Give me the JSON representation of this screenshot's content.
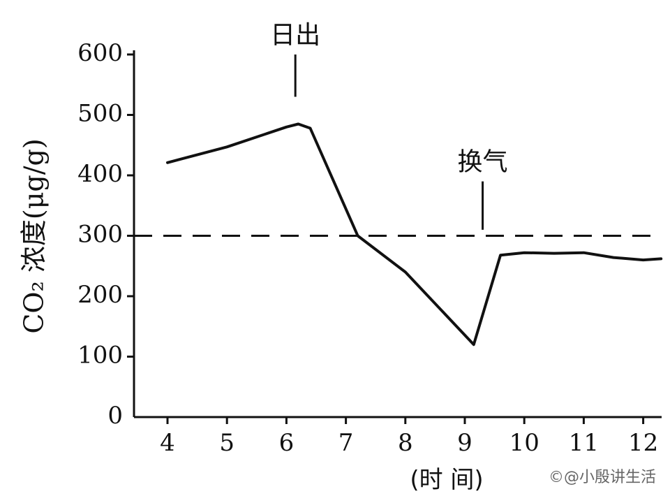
{
  "chart_data": {
    "type": "line",
    "xlabel": "(时    间)",
    "ylabel": "CO₂ 浓度(μg/g)",
    "xlim": [
      3.5,
      12.3
    ],
    "ylim": [
      0,
      600
    ],
    "x_ticks": [
      "4",
      "5",
      "6",
      "7",
      "8",
      "9",
      "10",
      "11",
      "12"
    ],
    "y_ticks": [
      "0",
      "100",
      "200",
      "300",
      "400",
      "500",
      "600"
    ],
    "grid": false,
    "series": [
      {
        "points": [
          {
            "x": 4.0,
            "y": 421
          },
          {
            "x": 5.0,
            "y": 447
          },
          {
            "x": 6.0,
            "y": 480
          },
          {
            "x": 6.2,
            "y": 485
          },
          {
            "x": 6.4,
            "y": 478
          },
          {
            "x": 7.2,
            "y": 300
          },
          {
            "x": 8.0,
            "y": 240
          },
          {
            "x": 9.15,
            "y": 120
          },
          {
            "x": 9.6,
            "y": 268
          },
          {
            "x": 10.0,
            "y": 272
          },
          {
            "x": 10.5,
            "y": 271
          },
          {
            "x": 11.0,
            "y": 272
          },
          {
            "x": 11.5,
            "y": 264
          },
          {
            "x": 12.0,
            "y": 260
          },
          {
            "x": 12.3,
            "y": 262
          }
        ]
      }
    ],
    "reference_line": {
      "y": 300,
      "style": "dashed"
    },
    "annotations": [
      {
        "text": "日出",
        "x": 6.15,
        "marker_y_range": [
          530,
          600
        ]
      },
      {
        "text": "换气",
        "x": 9.3,
        "marker_y_range": [
          310,
          390
        ]
      }
    ]
  },
  "watermark": "©@小殷讲生活",
  "colors": {
    "line": "#111111",
    "background": "#ffffff",
    "watermark": "#666666"
  }
}
